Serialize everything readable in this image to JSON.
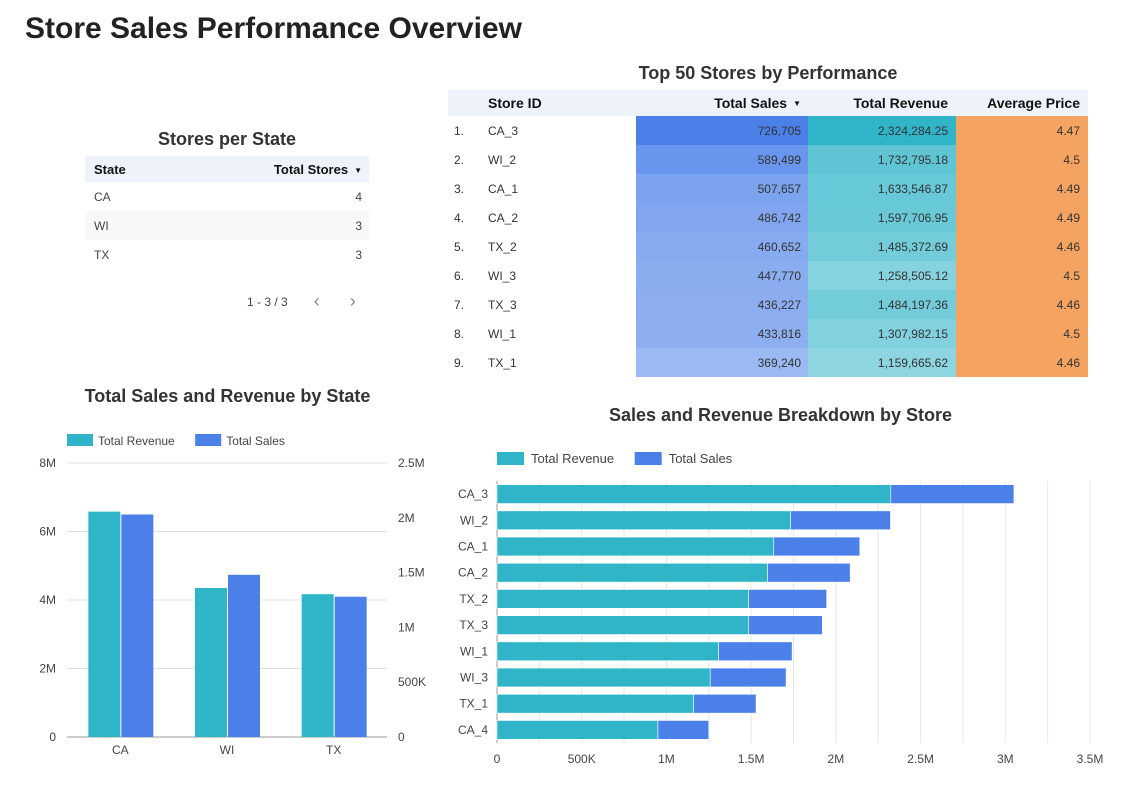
{
  "page_title": "Store Sales Performance Overview",
  "stores_per_state": {
    "title": "Stores per State",
    "columns": [
      "State",
      "Total Stores"
    ],
    "rows": [
      {
        "state": "CA",
        "total": "4"
      },
      {
        "state": "WI",
        "total": "3"
      },
      {
        "state": "TX",
        "total": "3"
      }
    ],
    "pager": "1 - 3 / 3",
    "prev_icon": "chevron-left-icon",
    "next_icon": "chevron-right-icon"
  },
  "top_stores": {
    "title": "Top 50 Stores by Performance",
    "columns": [
      "Store ID",
      "Total Sales",
      "Total Revenue",
      "Average Price"
    ],
    "rows": [
      {
        "idx": "1.",
        "id": "CA_3",
        "sales": "726,705",
        "revenue": "2,324,284.25",
        "price": "4.47"
      },
      {
        "idx": "2.",
        "id": "WI_2",
        "sales": "589,499",
        "revenue": "1,732,795.18",
        "price": "4.5"
      },
      {
        "idx": "3.",
        "id": "CA_1",
        "sales": "507,657",
        "revenue": "1,633,546.87",
        "price": "4.49"
      },
      {
        "idx": "4.",
        "id": "CA_2",
        "sales": "486,742",
        "revenue": "1,597,706.95",
        "price": "4.49"
      },
      {
        "idx": "5.",
        "id": "TX_2",
        "sales": "460,652",
        "revenue": "1,485,372.69",
        "price": "4.46"
      },
      {
        "idx": "6.",
        "id": "WI_3",
        "sales": "447,770",
        "revenue": "1,258,505.12",
        "price": "4.5"
      },
      {
        "idx": "7.",
        "id": "TX_3",
        "sales": "436,227",
        "revenue": "1,484,197.36",
        "price": "4.46"
      },
      {
        "idx": "8.",
        "id": "WI_1",
        "sales": "433,816",
        "revenue": "1,307,982.15",
        "price": "4.5"
      },
      {
        "idx": "9.",
        "id": "TX_1",
        "sales": "369,240",
        "revenue": "1,159,665.62",
        "price": "4.46"
      }
    ],
    "colors": {
      "sales": "#4a80e8",
      "revenue": "#2fb4c8",
      "price": "#f4a460"
    }
  },
  "chart_data": [
    {
      "type": "bar",
      "title": "Total Sales and Revenue by State",
      "categories": [
        "CA",
        "WI",
        "TX"
      ],
      "series": [
        {
          "name": "Total Revenue",
          "values": [
            6580000,
            4350000,
            4170000
          ],
          "color": "#2fb4c8",
          "axis": "left"
        },
        {
          "name": "Total Sales",
          "values": [
            2030000,
            1480000,
            1280000
          ],
          "color": "#4a80e8",
          "axis": "right"
        }
      ],
      "ylim_left": [
        0,
        8000000
      ],
      "ylim_right": [
        0,
        2500000
      ],
      "left_ticks": [
        "0",
        "2M",
        "4M",
        "6M",
        "8M"
      ],
      "right_ticks": [
        "0",
        "500K",
        "1M",
        "1.5M",
        "2M",
        "2.5M"
      ],
      "legend": "top-left",
      "grid": true
    },
    {
      "type": "bar",
      "orientation": "horizontal",
      "stacked": true,
      "title": "Sales and Revenue Breakdown by Store",
      "categories": [
        "CA_3",
        "WI_2",
        "CA_1",
        "CA_2",
        "TX_2",
        "TX_3",
        "WI_1",
        "WI_3",
        "TX_1",
        "CA_4"
      ],
      "series": [
        {
          "name": "Total Revenue",
          "values": [
            2324284.25,
            1732795.18,
            1633546.87,
            1597706.95,
            1485372.69,
            1484197.36,
            1307982.15,
            1258505.12,
            1159665.62,
            950000
          ],
          "color": "#2fb4c8"
        },
        {
          "name": "Total Sales",
          "values": [
            726705,
            589499,
            507657,
            486742,
            460652,
            436227,
            433816,
            447770,
            369240,
            300000
          ],
          "color": "#4a80e8"
        }
      ],
      "xlim": [
        0,
        3500000
      ],
      "x_ticks": [
        "0",
        "500K",
        "1M",
        "1.5M",
        "2M",
        "2.5M",
        "3M",
        "3.5M"
      ],
      "legend": "top-left",
      "grid": true
    }
  ]
}
